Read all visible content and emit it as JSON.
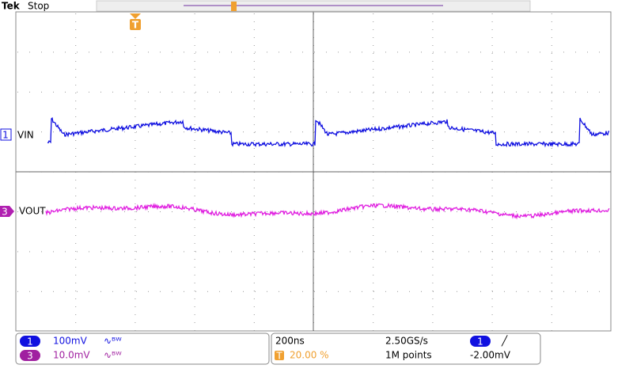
{
  "header": {
    "brand": "Tek",
    "status": "Stop"
  },
  "trigger_marker": "T",
  "channels": [
    {
      "number": "1",
      "label": "VIN",
      "scale": "100mV",
      "bandwidth": "∿ᴮᵂ"
    },
    {
      "number": "3",
      "label": "VOUT",
      "scale": "10.0mV",
      "bandwidth": "∿ᴮᵂ"
    }
  ],
  "timebase": {
    "scale": "200ns",
    "position": "20.00 %",
    "sample_rate": "2.50GS/s",
    "record_length": "1M points"
  },
  "trigger": {
    "source": "1",
    "slope": "╱",
    "level": "-2.00mV"
  }
}
